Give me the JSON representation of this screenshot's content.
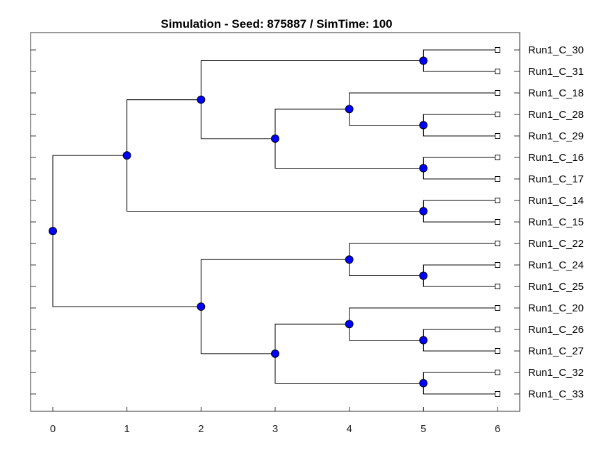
{
  "chart_data": {
    "type": "dendrogram",
    "title": "Simulation - Seed: 875887 / SimTime: 100",
    "xlabel": "",
    "ylabel": "",
    "xlim": [
      -0.3,
      6.3
    ],
    "xticks": [
      0,
      1,
      2,
      3,
      4,
      5,
      6
    ],
    "colors": {
      "node_fill": "#0000ff",
      "node_stroke": "#000000",
      "line": "#000000",
      "leaf_fill": "#ffffff"
    },
    "leaves": [
      "Run1_C_30",
      "Run1_C_31",
      "Run1_C_18",
      "Run1_C_28",
      "Run1_C_29",
      "Run1_C_16",
      "Run1_C_17",
      "Run1_C_14",
      "Run1_C_15",
      "Run1_C_22",
      "Run1_C_24",
      "Run1_C_25",
      "Run1_C_20",
      "Run1_C_26",
      "Run1_C_27",
      "Run1_C_32",
      "Run1_C_33"
    ],
    "leaf_time": 6,
    "tree": {
      "t": 0,
      "children": [
        {
          "t": 1,
          "children": [
            {
              "t": 2,
              "children": [
                {
                  "t": 5,
                  "children": [
                    "Run1_C_30",
                    "Run1_C_31"
                  ]
                },
                {
                  "t": 3,
                  "children": [
                    {
                      "t": 4,
                      "children": [
                        "Run1_C_18",
                        {
                          "t": 5,
                          "children": [
                            "Run1_C_28",
                            "Run1_C_29"
                          ]
                        }
                      ]
                    },
                    {
                      "t": 5,
                      "children": [
                        "Run1_C_16",
                        "Run1_C_17"
                      ]
                    }
                  ]
                }
              ]
            },
            {
              "t": 5,
              "children": [
                "Run1_C_14",
                "Run1_C_15"
              ]
            }
          ]
        },
        {
          "t": 2,
          "children": [
            {
              "t": 4,
              "children": [
                "Run1_C_22",
                {
                  "t": 5,
                  "children": [
                    "Run1_C_24",
                    "Run1_C_25"
                  ]
                }
              ]
            },
            {
              "t": 3,
              "children": [
                {
                  "t": 4,
                  "children": [
                    "Run1_C_20",
                    {
                      "t": 5,
                      "children": [
                        "Run1_C_26",
                        "Run1_C_27"
                      ]
                    }
                  ]
                },
                {
                  "t": 5,
                  "children": [
                    "Run1_C_32",
                    "Run1_C_33"
                  ]
                }
              ]
            }
          ]
        }
      ]
    }
  }
}
